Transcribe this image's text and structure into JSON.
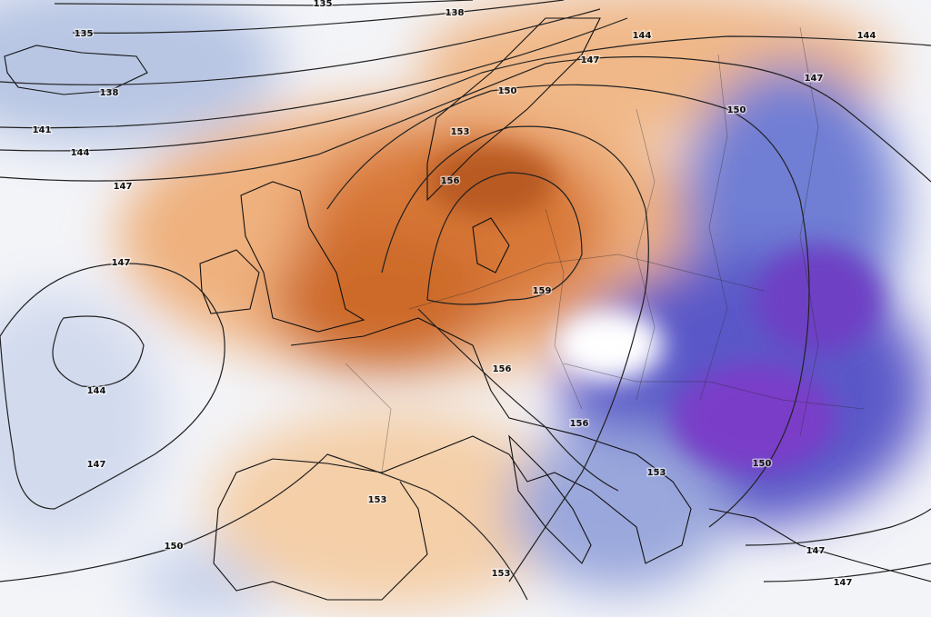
{
  "contour_labels": [
    "135",
    "138",
    "135",
    "138",
    "141",
    "144",
    "147",
    "144",
    "147",
    "144",
    "147",
    "150",
    "150",
    "153",
    "156",
    "147",
    "144",
    "147",
    "159",
    "156",
    "156",
    "153",
    "150",
    "153",
    "150",
    "153",
    "147",
    "147"
  ]
}
